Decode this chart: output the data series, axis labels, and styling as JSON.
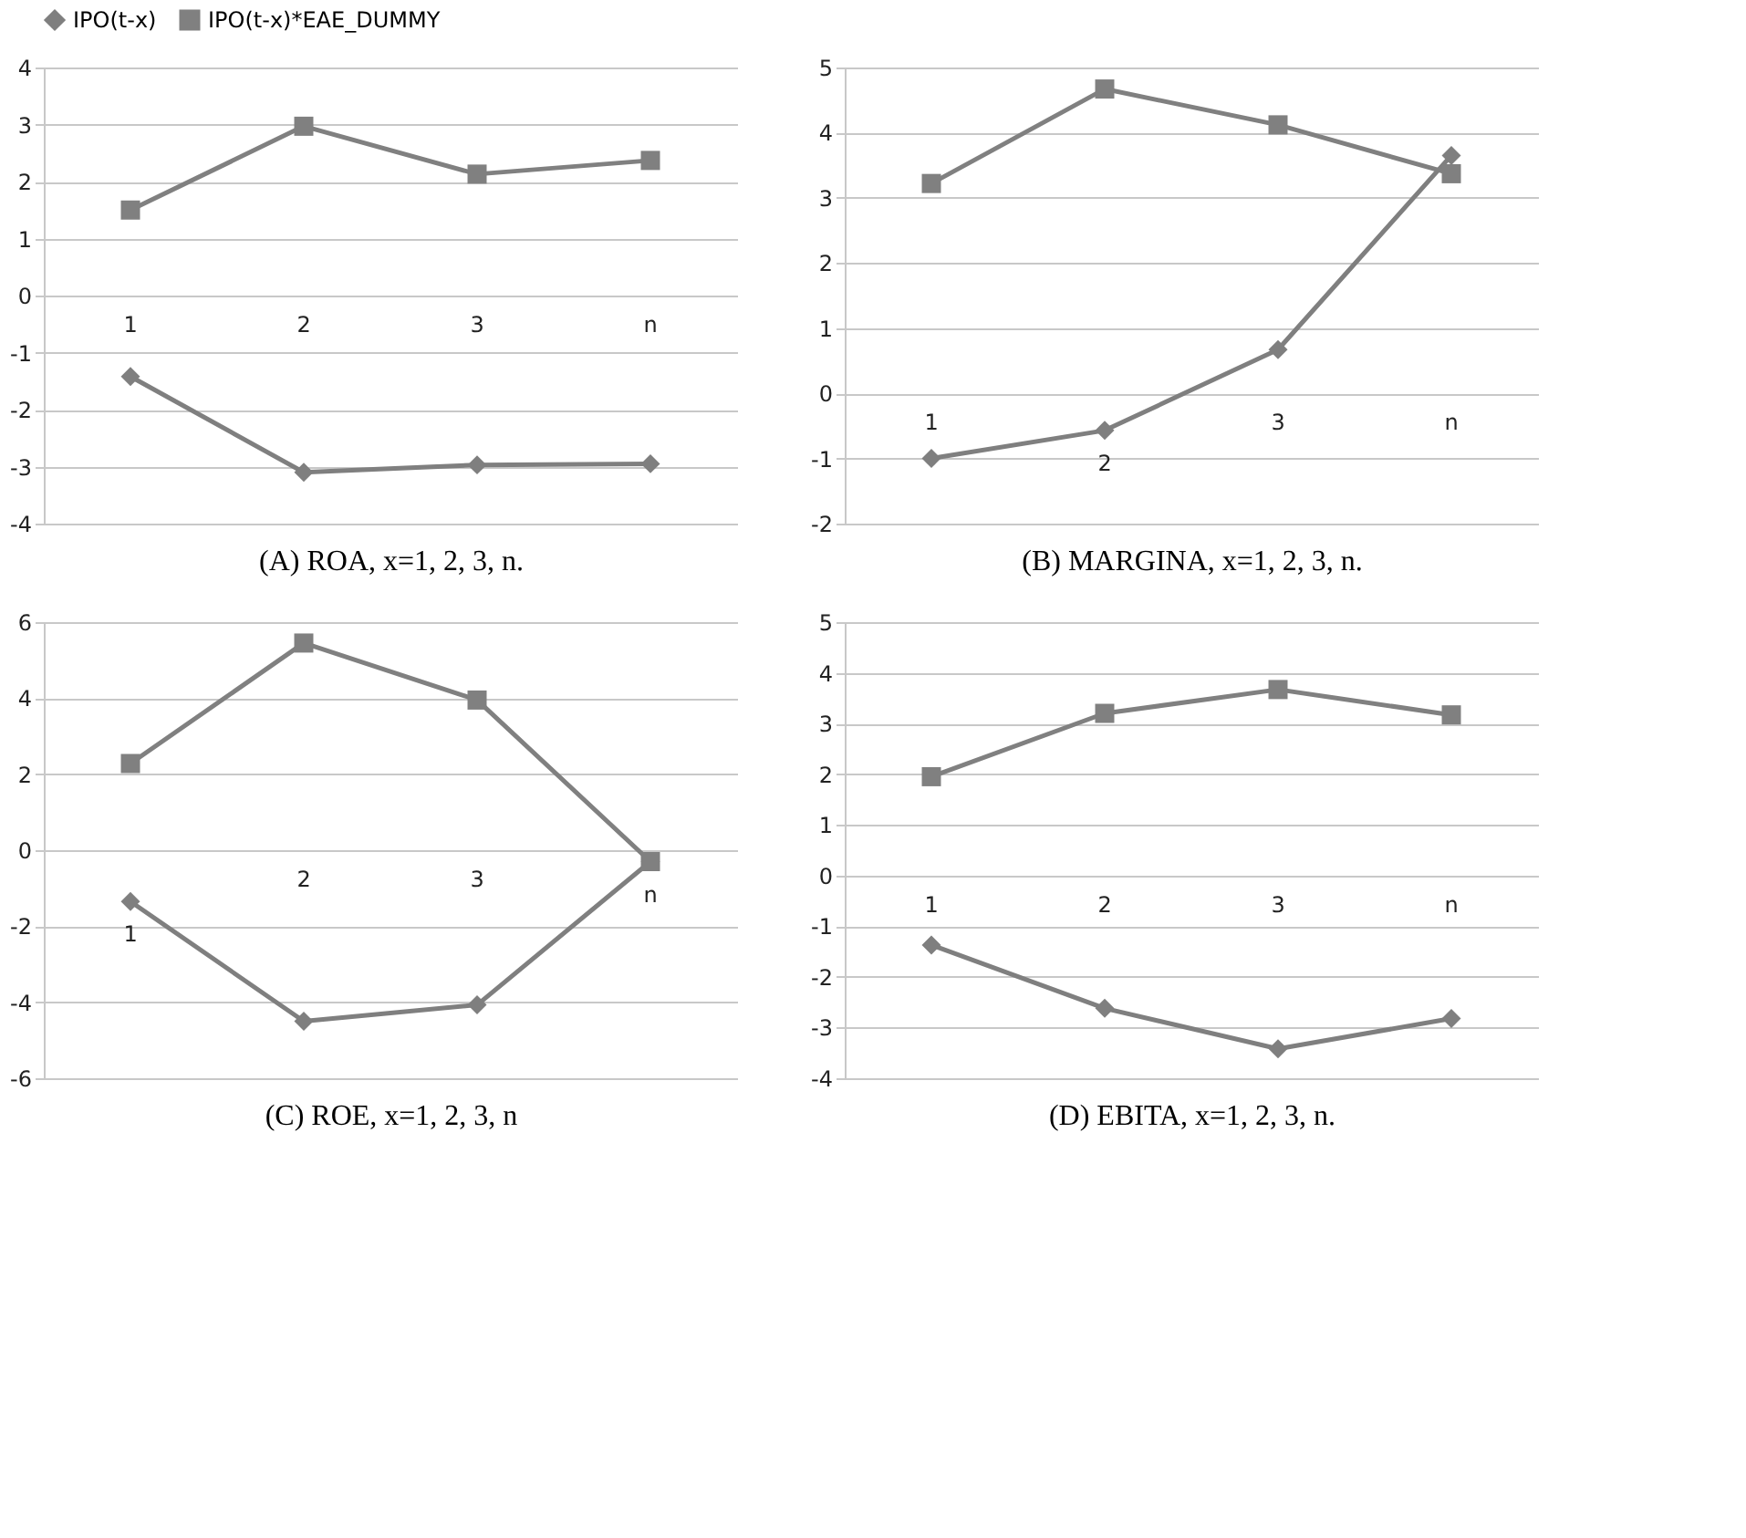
{
  "chart_data": [
    {
      "type": "line",
      "xlabel": "(A)  ROA, x=1, 2, 3, n.",
      "categories": [
        "1",
        "2",
        "3",
        "n"
      ],
      "ylim": [
        -4,
        4
      ],
      "yticks": [
        -4,
        -3,
        -2,
        -1,
        0,
        1,
        2,
        3,
        4
      ],
      "grid": "y",
      "legend": "top",
      "line_style": "solid",
      "series": [
        {
          "name": "IPO(t-x)",
          "color": "#7f7f7f",
          "marker": "diamond",
          "values": [
            -1.42,
            -3.1,
            -2.97,
            -2.95
          ]
        },
        {
          "name": "IPO(t-x)*EAE_DUMMY",
          "color": "#808080",
          "marker": "square",
          "values": [
            1.5,
            2.97,
            2.13,
            2.37
          ]
        }
      ]
    },
    {
      "type": "line",
      "xlabel": "(B) MARGINA, x=1, 2, 3, n.",
      "categories": [
        "1",
        "2",
        "3",
        "n"
      ],
      "ylim": [
        -2,
        5
      ],
      "yticks": [
        -2,
        -1,
        0,
        1,
        2,
        3,
        4,
        5
      ],
      "grid": "y",
      "line_style": "solid",
      "series": [
        {
          "color": "#7f7f7f",
          "marker": "diamond",
          "values": [
            -1.0,
            -0.57,
            0.67,
            3.65
          ]
        },
        {
          "color": "#808080",
          "marker": "square",
          "values": [
            3.22,
            4.67,
            4.12,
            3.37
          ]
        }
      ]
    },
    {
      "type": "line",
      "xlabel": "(C) ROE, x=1, 2, 3, n",
      "categories": [
        "1",
        "2",
        "3",
        "n"
      ],
      "ylim": [
        -6,
        6
      ],
      "yticks": [
        -6,
        -4,
        -2,
        0,
        2,
        4,
        6
      ],
      "grid": "y",
      "line_style": "solid",
      "series": [
        {
          "color": "#7f7f7f",
          "marker": "diamond",
          "values": [
            -1.35,
            -4.5,
            -4.07,
            -0.3
          ]
        },
        {
          "color": "#808080",
          "marker": "square",
          "values": [
            2.28,
            5.45,
            3.95,
            -0.3
          ]
        }
      ]
    },
    {
      "type": "line",
      "xlabel": "(D) EBITA, x=1, 2, 3, n.",
      "categories": [
        "1",
        "2",
        "3",
        "n"
      ],
      "ylim": [
        -4,
        5
      ],
      "yticks": [
        -4,
        -3,
        -2,
        -1,
        0,
        1,
        2,
        3,
        4,
        5
      ],
      "grid": "y",
      "line_style": "solid",
      "series": [
        {
          "color": "#7f7f7f",
          "marker": "diamond",
          "values": [
            -1.37,
            -2.62,
            -3.42,
            -2.82
          ]
        },
        {
          "color": "#808080",
          "marker": "square",
          "values": [
            1.95,
            3.2,
            3.67,
            3.17
          ]
        }
      ]
    }
  ]
}
